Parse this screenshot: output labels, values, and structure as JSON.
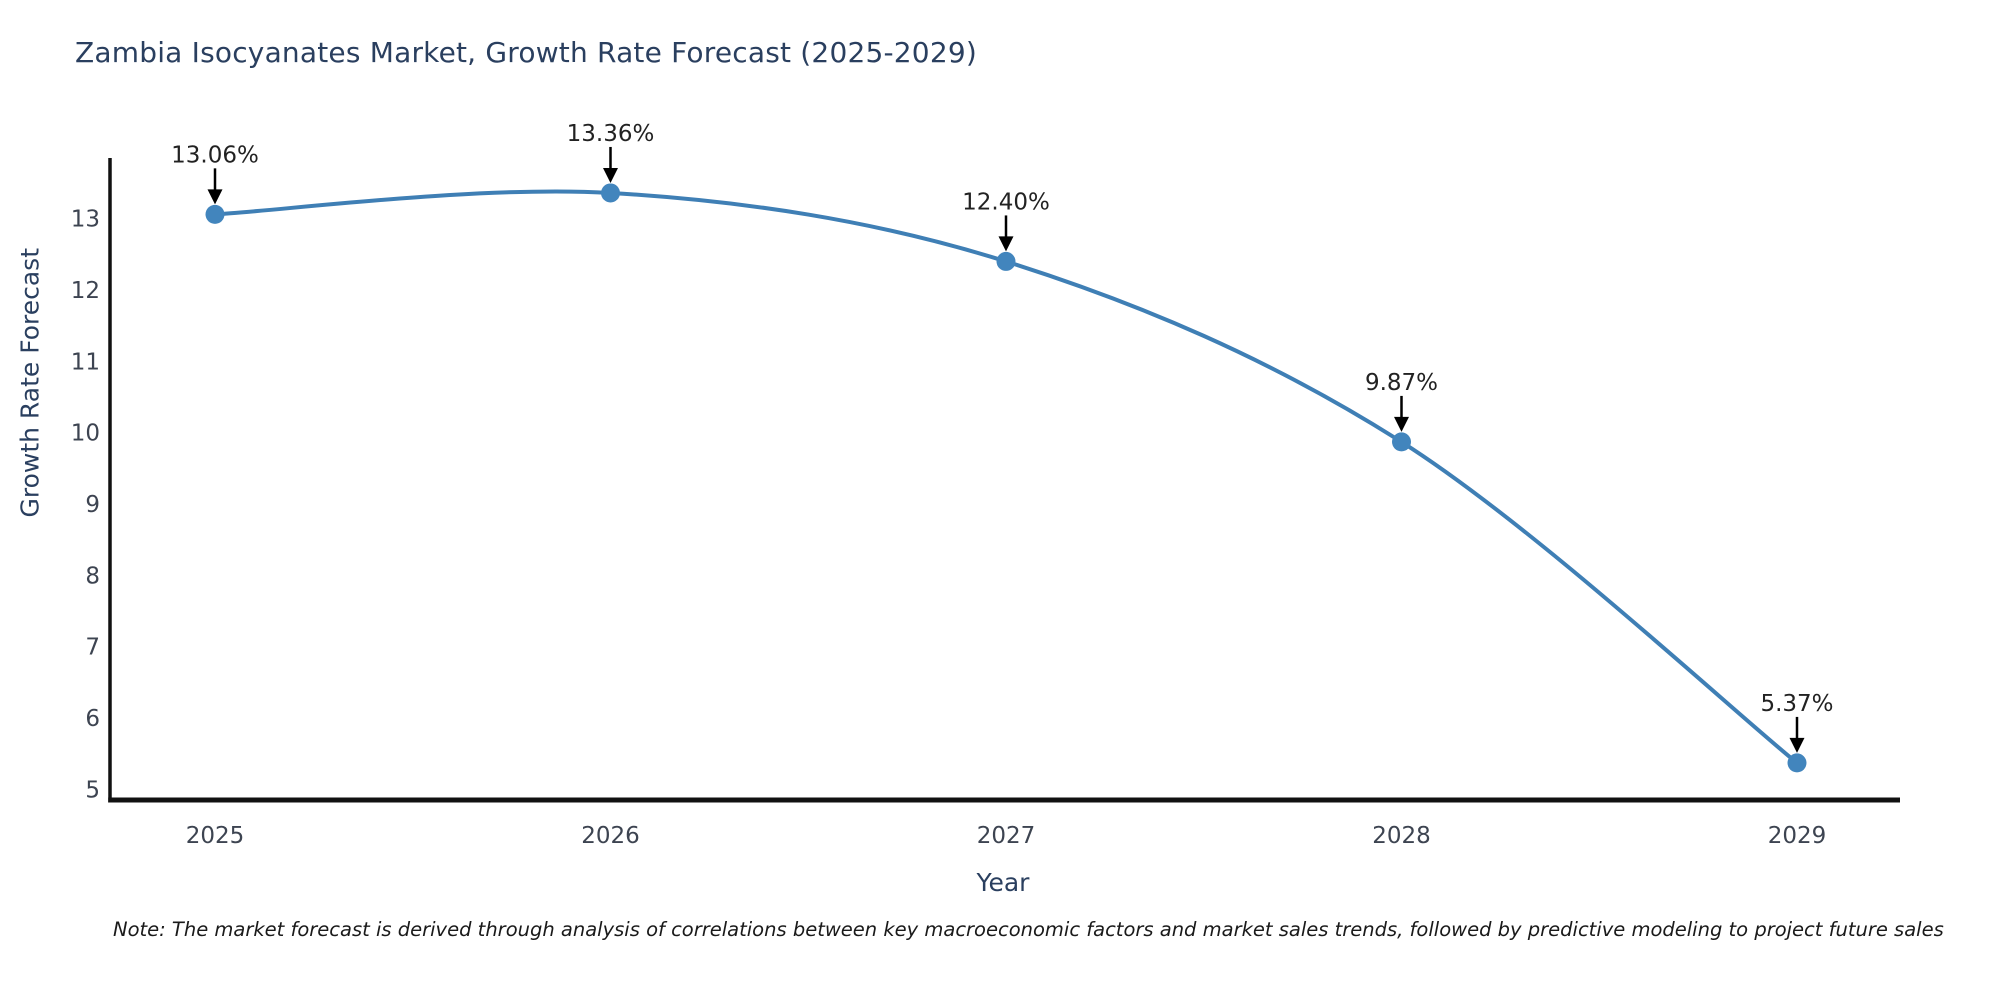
{
  "title": "Zambia Isocyanates Market, Growth Rate Forecast (2025-2029)",
  "note": "Note: The market forecast is derived through analysis of correlations between key macroeconomic factors and market sales trends, followed by predictive modeling to project future sales",
  "chart_data": {
    "type": "line",
    "title": "Zambia Isocyanates Market, Growth Rate Forecast (2025-2029)",
    "x": [
      2025,
      2026,
      2027,
      2028,
      2029
    ],
    "series": [
      {
        "name": "Growth Rate Forecast",
        "values": [
          13.06,
          13.36,
          12.4,
          9.87,
          5.37
        ]
      }
    ],
    "point_labels": [
      "13.06%",
      "13.36%",
      "12.40%",
      "9.87%",
      "5.37%"
    ],
    "xlabel": "Year",
    "ylabel": "Growth Rate Forecast",
    "y_ticks": [
      5,
      6,
      7,
      8,
      9,
      10,
      11,
      12,
      13
    ],
    "ylim": [
      4.85,
      13.85
    ],
    "line_shape": "spline",
    "grid": false,
    "legend": "none",
    "annotations_style": "down-arrow",
    "colors": {
      "line": "#3f7fb5",
      "marker": "#4285bd",
      "axis": "#111111",
      "title_text": "#2a3f5f",
      "tick_text": "#3d4451",
      "annotation_text": "#222222",
      "annotation_arrow": "#000000"
    }
  }
}
